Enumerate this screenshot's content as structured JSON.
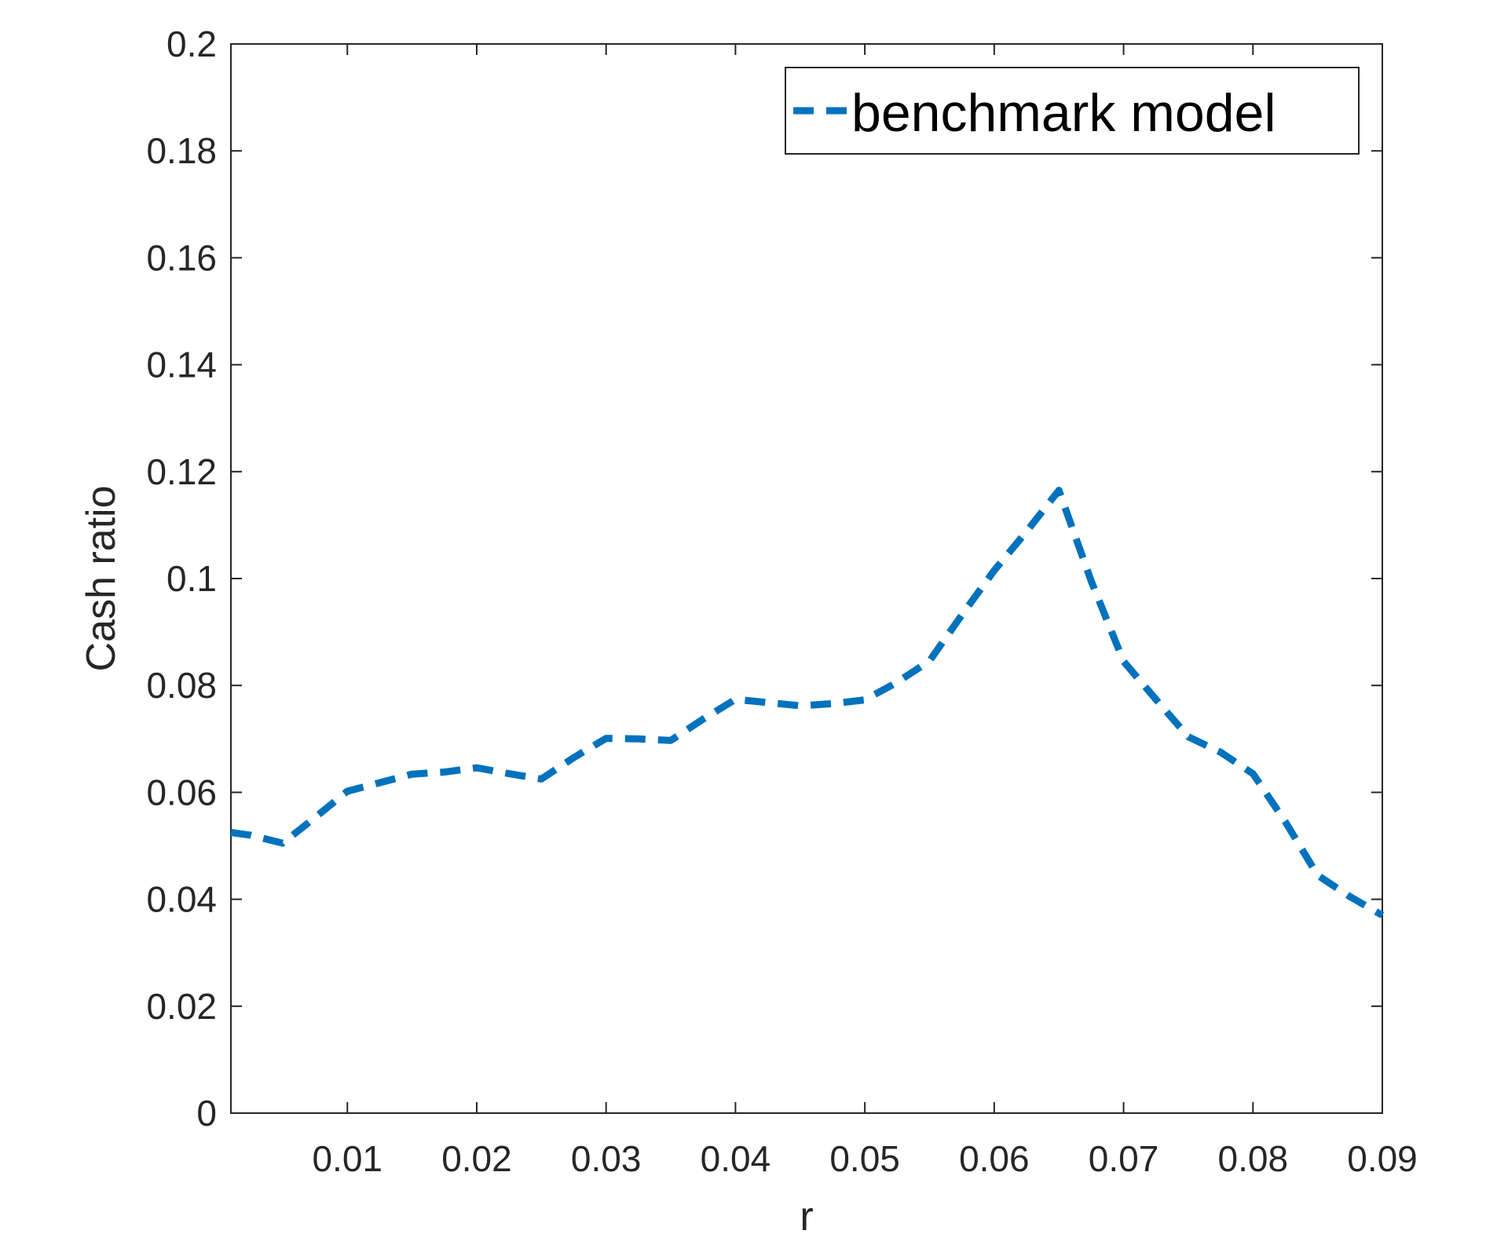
{
  "chart_data": {
    "type": "line",
    "title": "",
    "xlabel": "r",
    "ylabel": "Cash ratio",
    "xlim": [
      0.001,
      0.09
    ],
    "ylim": [
      0,
      0.2
    ],
    "xticks": [
      0.01,
      0.02,
      0.03,
      0.04,
      0.05,
      0.06,
      0.07,
      0.08,
      0.09
    ],
    "xtick_labels": [
      "0.01",
      "0.02",
      "0.03",
      "0.04",
      "0.05",
      "0.06",
      "0.07",
      "0.08",
      "0.09"
    ],
    "yticks": [
      0,
      0.02,
      0.04,
      0.06,
      0.08,
      0.1,
      0.12,
      0.14,
      0.16,
      0.18,
      0.2
    ],
    "ytick_labels": [
      "0",
      "0.02",
      "0.04",
      "0.06",
      "0.08",
      "0.1",
      "0.12",
      "0.14",
      "0.16",
      "0.18",
      "0.2"
    ],
    "grid": false,
    "legend_position": "top-right",
    "series": [
      {
        "name": "benchmark model",
        "color": "#0072BD",
        "line_style": "dashed",
        "x": [
          0.001,
          0.0025,
          0.005,
          0.0075,
          0.01,
          0.0125,
          0.015,
          0.0175,
          0.02,
          0.0225,
          0.025,
          0.0275,
          0.03,
          0.0325,
          0.035,
          0.0375,
          0.04,
          0.0425,
          0.045,
          0.0475,
          0.05,
          0.0525,
          0.055,
          0.0575,
          0.06,
          0.0625,
          0.065,
          0.0675,
          0.07,
          0.0725,
          0.075,
          0.0775,
          0.08,
          0.0825,
          0.085,
          0.0875,
          0.09
        ],
        "y": [
          0.0525,
          0.052,
          0.0505,
          0.0553,
          0.0602,
          0.0618,
          0.0634,
          0.0638,
          0.0646,
          0.0635,
          0.0625,
          0.0665,
          0.0701,
          0.07,
          0.0697,
          0.0737,
          0.0774,
          0.0768,
          0.0762,
          0.0766,
          0.0773,
          0.0806,
          0.0846,
          0.0932,
          0.1015,
          0.1088,
          0.1165,
          0.0995,
          0.0845,
          0.0774,
          0.0704,
          0.0675,
          0.0635,
          0.0545,
          0.0445,
          0.0405,
          0.037
        ]
      }
    ]
  }
}
